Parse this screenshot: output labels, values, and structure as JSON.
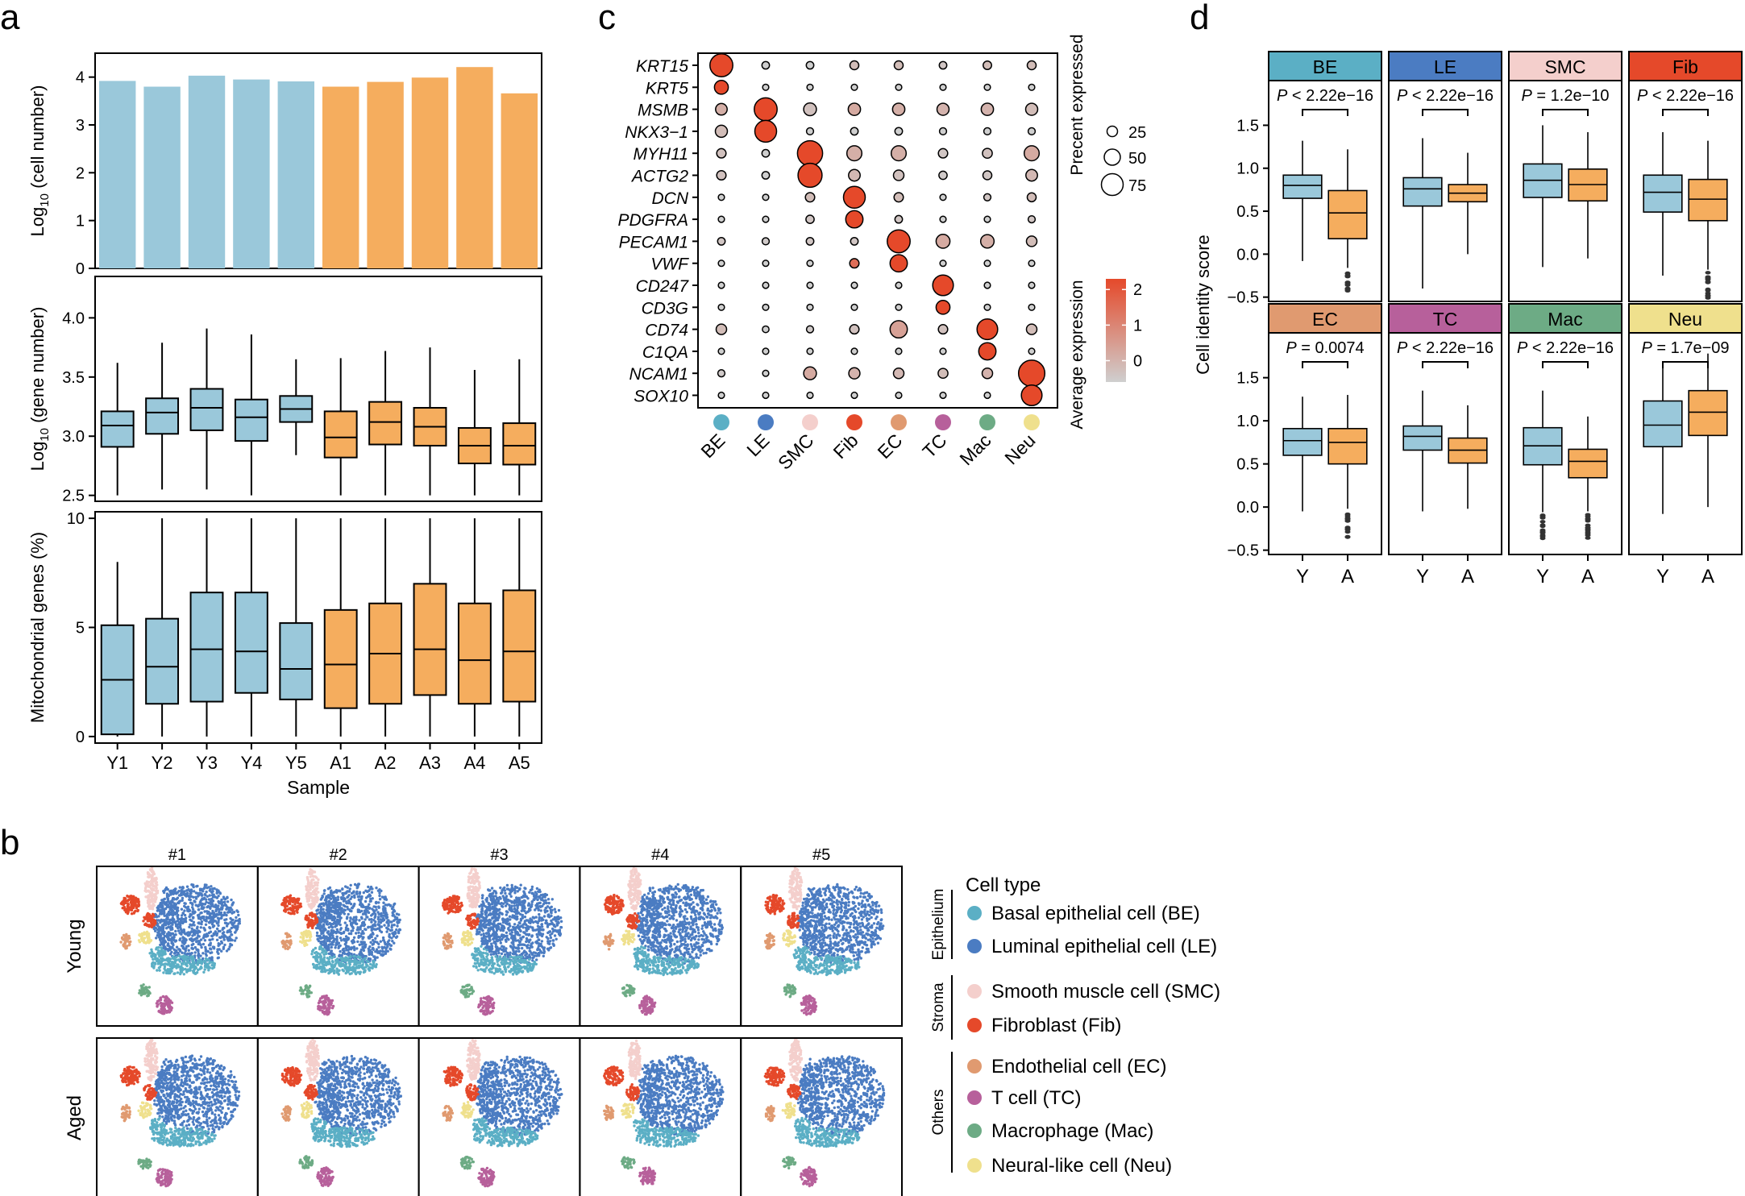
{
  "colors": {
    "young": "#9ac8da",
    "aged": "#f5ad5e",
    "BE": "#5bafc5",
    "LE": "#4b7cc2",
    "SMC": "#f4cfcc",
    "Fib": "#e5492a",
    "EC": "#e09a70",
    "TC": "#b7609b",
    "Mac": "#6dab85",
    "Neu": "#efe08d",
    "expr_low": "#cfcfcf",
    "expr_high": "#e5492a"
  },
  "panel_labels": {
    "a": "a",
    "b": "b",
    "c": "c",
    "d": "d"
  },
  "chart_data": [
    {
      "id": "a1",
      "type": "bar",
      "ylabel_main": "Log",
      "ylabel_sub": "10",
      "ylabel_tail": " (cell number)",
      "categories": [
        "Y1",
        "Y2",
        "Y3",
        "Y4",
        "Y5",
        "A1",
        "A2",
        "A3",
        "A4",
        "A5"
      ],
      "groups": [
        "young",
        "young",
        "young",
        "young",
        "young",
        "aged",
        "aged",
        "aged",
        "aged",
        "aged"
      ],
      "values": [
        3.92,
        3.8,
        4.03,
        3.95,
        3.91,
        3.8,
        3.9,
        3.99,
        4.21,
        3.66
      ],
      "ylim": [
        0,
        4.5
      ],
      "yticks": [
        0,
        1,
        2,
        3,
        4
      ]
    },
    {
      "id": "a2",
      "type": "box",
      "ylabel_main": "Log",
      "ylabel_sub": "10",
      "ylabel_tail": " (gene number)",
      "categories": [
        "Y1",
        "Y2",
        "Y3",
        "Y4",
        "Y5",
        "A1",
        "A2",
        "A3",
        "A4",
        "A5"
      ],
      "groups": [
        "young",
        "young",
        "young",
        "young",
        "young",
        "aged",
        "aged",
        "aged",
        "aged",
        "aged"
      ],
      "boxes": [
        {
          "min": 2.5,
          "q1": 2.91,
          "med": 3.09,
          "q3": 3.21,
          "max": 3.62
        },
        {
          "min": 2.55,
          "q1": 3.02,
          "med": 3.2,
          "q3": 3.32,
          "max": 3.79
        },
        {
          "min": 2.55,
          "q1": 3.05,
          "med": 3.24,
          "q3": 3.4,
          "max": 3.91
        },
        {
          "min": 2.5,
          "q1": 2.96,
          "med": 3.16,
          "q3": 3.31,
          "max": 3.86
        },
        {
          "min": 2.84,
          "q1": 3.12,
          "med": 3.23,
          "q3": 3.34,
          "max": 3.65
        },
        {
          "min": 2.5,
          "q1": 2.82,
          "med": 2.99,
          "q3": 3.21,
          "max": 3.66
        },
        {
          "min": 2.5,
          "q1": 2.93,
          "med": 3.12,
          "q3": 3.29,
          "max": 3.72
        },
        {
          "min": 2.5,
          "q1": 2.92,
          "med": 3.08,
          "q3": 3.24,
          "max": 3.75
        },
        {
          "min": 2.5,
          "q1": 2.77,
          "med": 2.92,
          "q3": 3.07,
          "max": 3.56
        },
        {
          "min": 2.5,
          "q1": 2.76,
          "med": 2.92,
          "q3": 3.11,
          "max": 3.65
        }
      ],
      "ylim": [
        2.45,
        4.35
      ],
      "yticks": [
        2.5,
        3.0,
        3.5,
        4.0
      ],
      "ytick_labels": [
        "2.5",
        "3.0",
        "3.5",
        "4.0"
      ]
    },
    {
      "id": "a3",
      "type": "box",
      "ylabel": "Mitochondrial genes (%)",
      "xlabel": "Sample",
      "categories": [
        "Y1",
        "Y2",
        "Y3",
        "Y4",
        "Y5",
        "A1",
        "A2",
        "A3",
        "A4",
        "A5"
      ],
      "groups": [
        "young",
        "young",
        "young",
        "young",
        "young",
        "aged",
        "aged",
        "aged",
        "aged",
        "aged"
      ],
      "boxes": [
        {
          "min": 0.0,
          "q1": 0.1,
          "med": 2.6,
          "q3": 5.1,
          "max": 8.0
        },
        {
          "min": 0.0,
          "q1": 1.5,
          "med": 3.2,
          "q3": 5.4,
          "max": 10.0
        },
        {
          "min": 0.0,
          "q1": 1.6,
          "med": 4.0,
          "q3": 6.6,
          "max": 10.0
        },
        {
          "min": 0.0,
          "q1": 2.0,
          "med": 3.9,
          "q3": 6.6,
          "max": 10.0
        },
        {
          "min": 0.0,
          "q1": 1.7,
          "med": 3.1,
          "q3": 5.2,
          "max": 10.0
        },
        {
          "min": 0.0,
          "q1": 1.3,
          "med": 3.3,
          "q3": 5.8,
          "max": 10.0
        },
        {
          "min": 0.0,
          "q1": 1.5,
          "med": 3.8,
          "q3": 6.1,
          "max": 10.0
        },
        {
          "min": 0.0,
          "q1": 1.9,
          "med": 4.0,
          "q3": 7.0,
          "max": 10.0
        },
        {
          "min": 0.0,
          "q1": 1.5,
          "med": 3.5,
          "q3": 6.1,
          "max": 10.0
        },
        {
          "min": 0.0,
          "q1": 1.6,
          "med": 3.9,
          "q3": 6.7,
          "max": 10.0
        }
      ],
      "ylim": [
        -0.3,
        10.3
      ],
      "yticks": [
        0,
        5,
        10
      ],
      "ytick_labels": [
        "0",
        "5",
        "10"
      ]
    },
    {
      "id": "b",
      "type": "scatter",
      "column_titles": [
        "#1",
        "#2",
        "#3",
        "#4",
        "#5"
      ],
      "row_labels": [
        "Young",
        "Aged"
      ],
      "legend_title": "Cell type",
      "legend_groups": [
        {
          "name": "Epithelium",
          "items": [
            {
              "key": "BE",
              "label": "Basal epithelial cell (BE)"
            },
            {
              "key": "LE",
              "label": "Luminal epithelial cell (LE)"
            }
          ]
        },
        {
          "name": "Stroma",
          "items": [
            {
              "key": "SMC",
              "label": "Smooth muscle cell (SMC)"
            },
            {
              "key": "Fib",
              "label": "Fibroblast (Fib)"
            }
          ]
        },
        {
          "name": "Others",
          "items": [
            {
              "key": "EC",
              "label": "Endothelial cell (EC)"
            },
            {
              "key": "TC",
              "label": "T cell (TC)"
            },
            {
              "key": "Mac",
              "label": "Macrophage (Mac)"
            },
            {
              "key": "Neu",
              "label": "Neural-like cell (Neu)"
            }
          ]
        }
      ]
    },
    {
      "id": "c",
      "type": "heatmap",
      "genes": [
        "KRT15",
        "KRT5",
        "MSMB",
        "NKX3−1",
        "MYH11",
        "ACTG2",
        "DCN",
        "PDGFRA",
        "PECAM1",
        "VWF",
        "CD247",
        "CD3G",
        "CD74",
        "C1QA",
        "NCAM1",
        "SOX10"
      ],
      "cell_types": [
        "BE",
        "LE",
        "SMC",
        "Fib",
        "EC",
        "TC",
        "Mac",
        "Neu"
      ],
      "pct": [
        [
          80,
          12,
          12,
          18,
          18,
          12,
          16,
          18
        ],
        [
          40,
          6,
          6,
          6,
          6,
          6,
          6,
          6
        ],
        [
          30,
          80,
          35,
          33,
          33,
          32,
          33,
          32
        ],
        [
          32,
          75,
          10,
          12,
          12,
          10,
          10,
          10
        ],
        [
          20,
          12,
          90,
          45,
          45,
          20,
          22,
          45
        ],
        [
          20,
          12,
          85,
          30,
          25,
          15,
          18,
          30
        ],
        [
          6,
          6,
          20,
          75,
          20,
          6,
          10,
          18
        ],
        [
          6,
          6,
          15,
          55,
          12,
          6,
          6,
          10
        ],
        [
          12,
          10,
          12,
          12,
          80,
          40,
          38,
          25
        ],
        [
          6,
          6,
          6,
          20,
          55,
          6,
          6,
          6
        ],
        [
          6,
          6,
          6,
          6,
          6,
          70,
          6,
          6
        ],
        [
          6,
          6,
          6,
          6,
          6,
          40,
          6,
          6
        ],
        [
          25,
          8,
          10,
          20,
          55,
          20,
          70,
          25
        ],
        [
          6,
          6,
          6,
          6,
          6,
          6,
          55,
          6
        ],
        [
          10,
          6,
          35,
          28,
          25,
          22,
          25,
          95
        ],
        [
          6,
          6,
          6,
          6,
          6,
          6,
          6,
          70
        ]
      ],
      "expr": [
        [
          2.3,
          -0.6,
          -0.6,
          -0.2,
          -0.2,
          -0.4,
          -0.2,
          -0.2
        ],
        [
          2.3,
          -0.6,
          -0.6,
          -0.6,
          -0.6,
          -0.6,
          -0.6,
          -0.6
        ],
        [
          0.1,
          2.3,
          -0.3,
          0.2,
          0.1,
          0.0,
          0.0,
          -0.2
        ],
        [
          -0.2,
          2.3,
          -0.6,
          -0.6,
          -0.6,
          -0.6,
          -0.6,
          -0.6
        ],
        [
          -0.3,
          -0.6,
          2.3,
          0.1,
          0.1,
          -0.4,
          -0.3,
          0.2
        ],
        [
          -0.3,
          -0.6,
          2.3,
          -0.1,
          -0.3,
          -0.5,
          -0.4,
          -0.1
        ],
        [
          -0.6,
          -0.6,
          -0.2,
          2.3,
          -0.2,
          -0.6,
          -0.4,
          -0.2
        ],
        [
          -0.6,
          -0.6,
          -0.4,
          2.3,
          -0.4,
          -0.6,
          -0.6,
          -0.4
        ],
        [
          -0.4,
          -0.5,
          -0.4,
          -0.4,
          2.3,
          0.2,
          0.1,
          -0.2
        ],
        [
          -0.6,
          -0.6,
          -0.6,
          1.5,
          2.3,
          -0.6,
          -0.6,
          -0.6
        ],
        [
          -0.6,
          -0.6,
          -0.6,
          -0.6,
          -0.6,
          2.3,
          -0.6,
          -0.6
        ],
        [
          -0.6,
          -0.6,
          -0.6,
          -0.6,
          -0.6,
          2.3,
          -0.6,
          -0.6
        ],
        [
          -0.2,
          -0.6,
          -0.5,
          -0.3,
          0.4,
          -0.3,
          2.3,
          -0.2
        ],
        [
          -0.6,
          -0.6,
          -0.6,
          -0.6,
          -0.6,
          -0.6,
          2.3,
          -0.6
        ],
        [
          -0.5,
          -0.6,
          0.2,
          0.0,
          -0.1,
          -0.2,
          0.0,
          2.3
        ],
        [
          -0.6,
          -0.6,
          -0.6,
          -0.6,
          -0.6,
          -0.6,
          -0.6,
          2.3
        ]
      ],
      "size_legend_title": "Precent expressed",
      "size_legend": [
        25,
        50,
        75
      ],
      "color_legend_title": "Average expression",
      "color_legend_ticks": [
        0,
        1,
        2
      ],
      "color_range": [
        -0.6,
        2.3
      ]
    },
    {
      "id": "d",
      "type": "box",
      "ylabel": "Cell identity score",
      "xcats": [
        "Y",
        "A"
      ],
      "yticks": [
        -0.5,
        0.0,
        0.5,
        1.0,
        1.5
      ],
      "ytick_labels": [
        "−0.5",
        "0.0",
        "0.5",
        "1.0",
        "1.5"
      ],
      "ylim": [
        -0.55,
        2.02
      ],
      "panels": [
        {
          "title": "BE",
          "p_label": "P",
          "p_text": " < 2.22e−16",
          "Y": {
            "min": -0.08,
            "q1": 0.65,
            "med": 0.8,
            "q3": 0.92,
            "max": 1.32
          },
          "A": {
            "min": -0.16,
            "q1": 0.18,
            "med": 0.48,
            "q3": 0.74,
            "max": 1.22
          }
        },
        {
          "title": "LE",
          "p_label": "P",
          "p_text": " < 2.22e−16",
          "Y": {
            "min": -0.4,
            "q1": 0.56,
            "med": 0.76,
            "q3": 0.89,
            "max": 1.35
          },
          "A": {
            "min": 0.0,
            "q1": 0.61,
            "med": 0.71,
            "q3": 0.81,
            "max": 1.18
          }
        },
        {
          "title": "SMC",
          "p_label": "P",
          "p_text": " = 1.2e−10",
          "Y": {
            "min": -0.15,
            "q1": 0.66,
            "med": 0.86,
            "q3": 1.05,
            "max": 1.5
          },
          "A": {
            "min": -0.05,
            "q1": 0.62,
            "med": 0.81,
            "q3": 0.99,
            "max": 1.42
          }
        },
        {
          "title": "Fib",
          "p_label": "P",
          "p_text": " < 2.22e−16",
          "Y": {
            "min": -0.25,
            "q1": 0.49,
            "med": 0.72,
            "q3": 0.92,
            "max": 1.42
          },
          "A": {
            "min": -0.18,
            "q1": 0.39,
            "med": 0.64,
            "q3": 0.87,
            "max": 1.32
          }
        },
        {
          "title": "EC",
          "p_label": "P",
          "p_text": " = 0.0074",
          "Y": {
            "min": -0.05,
            "q1": 0.6,
            "med": 0.77,
            "q3": 0.91,
            "max": 1.28
          },
          "A": {
            "min": -0.02,
            "q1": 0.5,
            "med": 0.75,
            "q3": 0.91,
            "max": 1.3
          }
        },
        {
          "title": "TC",
          "p_label": "P",
          "p_text": " < 2.22e−16",
          "Y": {
            "min": -0.05,
            "q1": 0.66,
            "med": 0.82,
            "q3": 0.94,
            "max": 1.35
          },
          "A": {
            "min": -0.02,
            "q1": 0.51,
            "med": 0.66,
            "q3": 0.8,
            "max": 1.18
          }
        },
        {
          "title": "Mac",
          "p_label": "P",
          "p_text": " < 2.22e−16",
          "Y": {
            "min": -0.06,
            "q1": 0.49,
            "med": 0.71,
            "q3": 0.92,
            "max": 1.35
          },
          "A": {
            "min": -0.05,
            "q1": 0.34,
            "med": 0.53,
            "q3": 0.67,
            "max": 1.05
          }
        },
        {
          "title": "Neu",
          "p_label": "P",
          "p_text": " = 1.7e−09",
          "Y": {
            "min": -0.08,
            "q1": 0.7,
            "med": 0.95,
            "q3": 1.23,
            "max": 1.62
          },
          "A": {
            "min": 0.0,
            "q1": 0.83,
            "med": 1.1,
            "q3": 1.35,
            "max": 1.78
          }
        }
      ]
    }
  ]
}
